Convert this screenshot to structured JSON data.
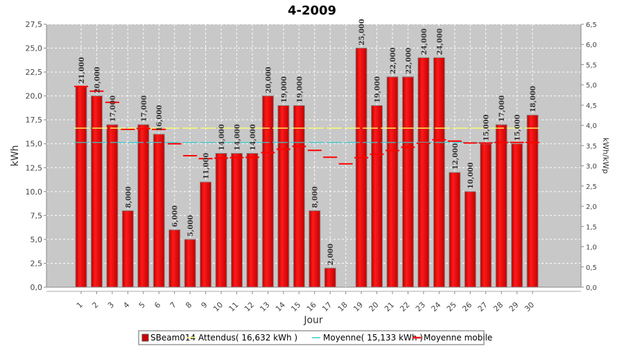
{
  "chart_data": {
    "type": "bar",
    "title": "4-2009",
    "xlabel": "Jour",
    "ylabel": "kWh",
    "y2label": "kWh/kWp",
    "ylim": [
      0,
      27.5
    ],
    "y2lim": [
      0,
      6.5
    ],
    "yticks": [
      "0,0",
      "2,5",
      "5,0",
      "7,5",
      "10,0",
      "12,5",
      "15,0",
      "17,5",
      "20,0",
      "22,5",
      "25,0",
      "27,5"
    ],
    "y2ticks": [
      "0,0",
      "0,5",
      "1,0",
      "1,5",
      "2,0",
      "2,5",
      "3,0",
      "3,5",
      "4,0",
      "4,5",
      "5,0",
      "5,5",
      "6,0",
      "6,5"
    ],
    "categories": [
      "1",
      "2",
      "3",
      "4",
      "5",
      "6",
      "7",
      "8",
      "9",
      "10",
      "11",
      "12",
      "13",
      "14",
      "15",
      "16",
      "17",
      "18",
      "19",
      "20",
      "21",
      "22",
      "23",
      "24",
      "25",
      "26",
      "27",
      "28",
      "29",
      "30"
    ],
    "series": [
      {
        "name": "SBeam014",
        "values": [
          21,
          20,
          17,
          8,
          17,
          16,
          6,
          5,
          11,
          14,
          14,
          14,
          20,
          19,
          19,
          8,
          2,
          null,
          25,
          19,
          22,
          22,
          24,
          24,
          12,
          10,
          15,
          17,
          15,
          18
        ],
        "labels": [
          "21,000",
          "20,000",
          "17,000",
          "8,000",
          "17,000",
          "16,000",
          "6,000",
          "5,000",
          "11,000",
          "14,000",
          "14,000",
          "14,000",
          "20,000",
          "19,000",
          "19,000",
          "8,000",
          "2,000",
          "",
          "25,000",
          "19,000",
          "22,000",
          "22,000",
          "24,000",
          "24,000",
          "12,000",
          "10,000",
          "15,000",
          "17,000",
          "15,000",
          "18,000"
        ],
        "color": "#ee0000"
      },
      {
        "name": "Attendus( 16,632 kWh )",
        "value": 16.632,
        "color": "#ffff66"
      },
      {
        "name": "Moyenne( 15,133 kWh )",
        "value": 15.133,
        "color": "#33cccc"
      },
      {
        "name": "Moyenne mobile",
        "values": [
          21,
          20.5,
          19.33,
          16.5,
          16.6,
          16.5,
          15,
          13.75,
          13.44,
          13.5,
          13.55,
          13.58,
          14.08,
          14.43,
          14.73,
          14.31,
          13.59,
          12.9,
          13.54,
          13.9,
          14.29,
          14.64,
          15.04,
          15.41,
          15.28,
          15.08,
          15.08,
          15.14,
          15.14,
          15.13
        ],
        "color": "#ff0000"
      }
    ],
    "grid": true,
    "legend": "bottom"
  }
}
